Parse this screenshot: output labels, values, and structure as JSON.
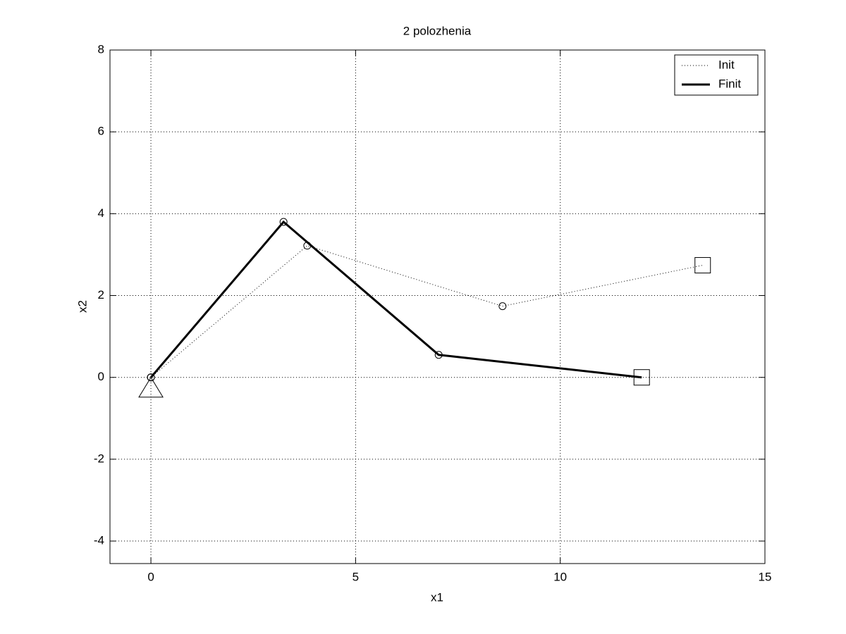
{
  "chart_data": {
    "type": "line",
    "title": "2 polozhenia",
    "x_label": "x1",
    "y_label": "x2",
    "series": [
      {
        "name": "Init",
        "color": "#000000",
        "style": "dotted",
        "width": 1,
        "x": [
          0,
          3.82,
          8.59,
          13.48
        ],
        "values": [
          0,
          3.22,
          1.74,
          2.74
        ]
      },
      {
        "name": "Finit",
        "color": "#000000",
        "style": "solid",
        "width": 3,
        "x": [
          0,
          3.24,
          7.03,
          11.99
        ],
        "values": [
          0,
          3.8,
          0.55,
          0
        ]
      }
    ],
    "xlim": [
      -1,
      15
    ],
    "ylim": [
      -4.55,
      8
    ],
    "xticks": [
      0,
      5,
      10,
      15
    ],
    "yticks": [
      -4,
      -2,
      0,
      2,
      4,
      6,
      8
    ],
    "grid": true,
    "legend": "upper right"
  }
}
